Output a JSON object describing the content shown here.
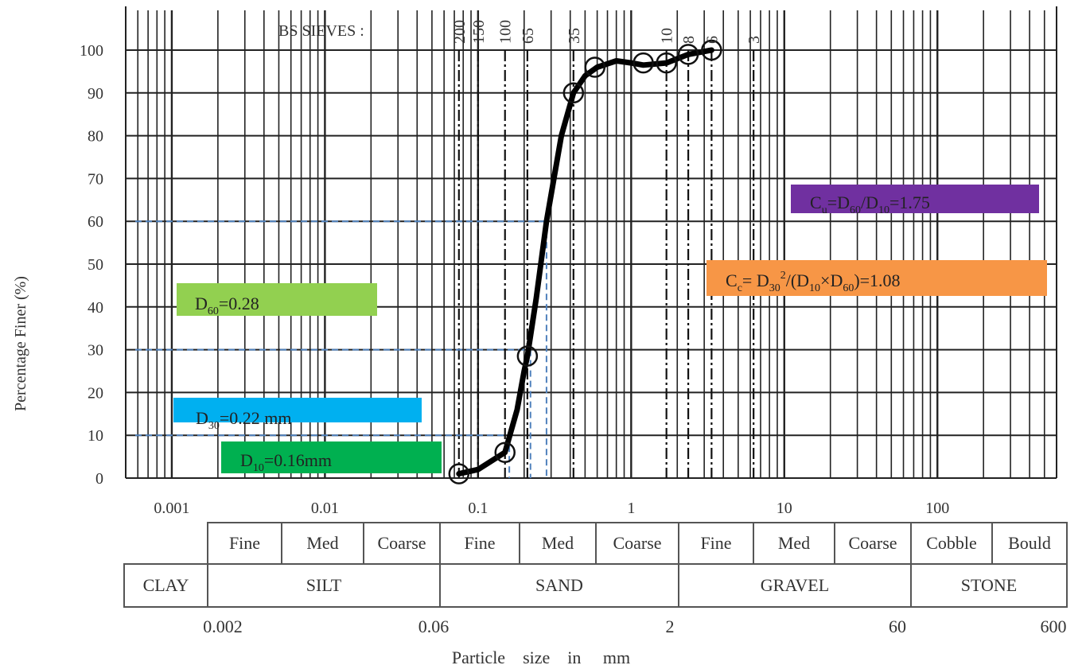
{
  "chart_data": {
    "type": "line",
    "sieve_header": "BS SIEVES :",
    "sieves": [
      {
        "label": "200",
        "size_mm": 0.075
      },
      {
        "label": "150",
        "size_mm": 0.1
      },
      {
        "label": "100",
        "size_mm": 0.15
      },
      {
        "label": "65",
        "size_mm": 0.21
      },
      {
        "label": "35",
        "size_mm": 0.42
      },
      {
        "label": "10",
        "size_mm": 1.7
      },
      {
        "label": "8",
        "size_mm": 2.36
      },
      {
        "label": "6",
        "size_mm": 3.35
      },
      {
        "label": "3",
        "size_mm": 6.3
      }
    ],
    "xlabel": "Particle    size    in     mm",
    "ylabel": "Percentage Finer  (%)",
    "x_scale": "log",
    "xlim": [
      0.0005,
      600
    ],
    "ylim": [
      0,
      100
    ],
    "x_ticks": [
      {
        "value": 0.001,
        "label": "0.001"
      },
      {
        "value": 0.01,
        "label": "0.01"
      },
      {
        "value": 0.1,
        "label": "0.1"
      },
      {
        "value": 1,
        "label": "1"
      },
      {
        "value": 10,
        "label": "10"
      },
      {
        "value": 100,
        "label": "100"
      }
    ],
    "y_ticks": [
      0,
      10,
      20,
      30,
      40,
      50,
      60,
      70,
      80,
      90,
      100
    ],
    "grid": true,
    "series": [
      {
        "x": [
          0.075,
          0.1,
          0.15,
          0.18,
          0.2,
          0.21,
          0.24,
          0.28,
          0.32,
          0.35,
          0.42,
          0.5,
          0.6,
          0.8,
          1.0,
          1.2,
          1.7,
          2.36,
          3.35
        ],
        "y": [
          1,
          2,
          6,
          16,
          25,
          28.5,
          42,
          60,
          72,
          80,
          90,
          94,
          96,
          97.5,
          97,
          96.5,
          97,
          99,
          100
        ]
      }
    ],
    "markers": {
      "x": [
        0.075,
        0.15,
        0.21,
        0.42,
        0.58,
        1.2,
        1.7,
        2.36,
        3.35
      ],
      "y": [
        1,
        6,
        28.5,
        90,
        96,
        97,
        97,
        99,
        100
      ]
    },
    "reference_lines": [
      {
        "label": "D60",
        "d_mm": 0.28,
        "percent": 60
      },
      {
        "label": "D30",
        "d_mm": 0.22,
        "percent": 30
      },
      {
        "label": "D10",
        "d_mm": 0.16,
        "percent": 10
      }
    ],
    "annotations": {
      "d60": {
        "prefix": "D",
        "sub": "60",
        "rest": "=0.28",
        "color": "#92d050"
      },
      "d30": {
        "prefix": "D",
        "sub": "30",
        "rest": "=0.22 mm",
        "color": "#00b0f0"
      },
      "d10": {
        "prefix": "D",
        "sub": "10",
        "rest": "=0.16mm",
        "color": "#00b050"
      },
      "cu": {
        "c": "C",
        "csub": "u",
        "eq": "=D",
        "s1": "60",
        "slash": "/D",
        "s2": "10",
        "rest": "=1.75",
        "color": "#7030a0"
      },
      "cc": {
        "c": "C",
        "csub": "c",
        "eq": "= D",
        "s1": "30",
        "sup": "2",
        "mid": "/(D",
        "s2": "10",
        "times": "×D",
        "s3": "60",
        "rest": ")=1.08",
        "color": "#f79646"
      }
    },
    "classification": {
      "subclasses": [
        "Fine",
        "Med",
        "Coarse",
        "Fine",
        "Med",
        "Coarse",
        "Fine",
        "Med",
        "Coarse",
        "Cobble",
        "Bould"
      ],
      "classes": [
        "CLAY",
        "SILT",
        "SAND",
        "GRAVEL",
        "STONE"
      ],
      "boundaries": [
        {
          "value": 0.002,
          "label": "0.002"
        },
        {
          "value": 0.06,
          "label": "0.06"
        },
        {
          "value": 2,
          "label": "2"
        },
        {
          "value": 60,
          "label": "60"
        },
        {
          "value": 600,
          "label": "600"
        }
      ]
    }
  }
}
